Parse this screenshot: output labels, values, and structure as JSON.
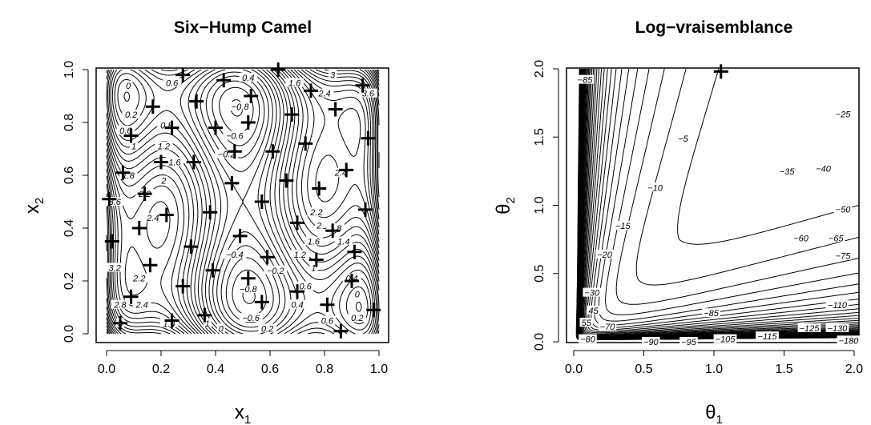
{
  "chart_data": [
    {
      "type": "contour",
      "title": "Six−Hump Camel",
      "xlabel": "x",
      "xlabel_sub": "1",
      "ylabel": "x",
      "ylabel_sub": "2",
      "xlim": [
        0,
        1
      ],
      "ylim": [
        0,
        1
      ],
      "x_ticks": [
        "0.0",
        "0.2",
        "0.4",
        "0.6",
        "0.8",
        "1.0"
      ],
      "y_ticks": [
        "0.0",
        "0.2",
        "0.4",
        "0.6",
        "0.8",
        "1.0"
      ],
      "contour_labels": [
        {
          "x": 0.08,
          "y": 0.94,
          "text": "0"
        },
        {
          "x": 0.24,
          "y": 0.95,
          "text": "0.6"
        },
        {
          "x": 0.52,
          "y": 0.97,
          "text": "0.4"
        },
        {
          "x": 0.69,
          "y": 0.95,
          "text": "1.6"
        },
        {
          "x": 0.83,
          "y": 0.98,
          "text": "3"
        },
        {
          "x": 0.8,
          "y": 0.91,
          "text": "2.4"
        },
        {
          "x": 0.96,
          "y": 0.91,
          "text": "3.6"
        },
        {
          "x": 0.49,
          "y": 0.86,
          "text": "−0.8"
        },
        {
          "x": 0.09,
          "y": 0.83,
          "text": "0.2"
        },
        {
          "x": 0.07,
          "y": 0.77,
          "text": "0.6"
        },
        {
          "x": 0.22,
          "y": 0.79,
          "text": "0.8"
        },
        {
          "x": 0.47,
          "y": 0.75,
          "text": "−0.6"
        },
        {
          "x": 0.1,
          "y": 0.71,
          "text": "1"
        },
        {
          "x": 0.21,
          "y": 0.71,
          "text": "1.2"
        },
        {
          "x": 0.44,
          "y": 0.68,
          "text": "−0.2"
        },
        {
          "x": 0.25,
          "y": 0.65,
          "text": "1.6"
        },
        {
          "x": 0.08,
          "y": 0.6,
          "text": "1.8"
        },
        {
          "x": 0.21,
          "y": 0.58,
          "text": "2"
        },
        {
          "x": 0.86,
          "y": 0.61,
          "text": "2.4"
        },
        {
          "x": 0.14,
          "y": 0.53,
          "text": "2.2"
        },
        {
          "x": 0.03,
          "y": 0.5,
          "text": "3.6"
        },
        {
          "x": 0.17,
          "y": 0.44,
          "text": "2.4"
        },
        {
          "x": 0.77,
          "y": 0.46,
          "text": "2.2"
        },
        {
          "x": 0.78,
          "y": 0.41,
          "text": "2"
        },
        {
          "x": 0.84,
          "y": 0.4,
          "text": "1.8"
        },
        {
          "x": 0.76,
          "y": 0.35,
          "text": "1.6"
        },
        {
          "x": 0.87,
          "y": 0.35,
          "text": "1.4"
        },
        {
          "x": 0.71,
          "y": 0.3,
          "text": "1.2"
        },
        {
          "x": 0.76,
          "y": 0.25,
          "text": "1"
        },
        {
          "x": 0.47,
          "y": 0.3,
          "text": "−0.4"
        },
        {
          "x": 0.03,
          "y": 0.25,
          "text": "3.2"
        },
        {
          "x": 0.62,
          "y": 0.24,
          "text": "−0.2"
        },
        {
          "x": 0.9,
          "y": 0.21,
          "text": "0.4"
        },
        {
          "x": 0.12,
          "y": 0.21,
          "text": "2.2"
        },
        {
          "x": 0.52,
          "y": 0.17,
          "text": "−0.8"
        },
        {
          "x": 0.73,
          "y": 0.18,
          "text": "0.6"
        },
        {
          "x": 0.92,
          "y": 0.15,
          "text": "0"
        },
        {
          "x": 0.7,
          "y": 0.11,
          "text": "0.4"
        },
        {
          "x": 0.13,
          "y": 0.11,
          "text": "2.4"
        },
        {
          "x": 0.05,
          "y": 0.11,
          "text": "2.8"
        },
        {
          "x": 0.53,
          "y": 0.06,
          "text": "−0.6"
        },
        {
          "x": 0.81,
          "y": 0.05,
          "text": "0.6"
        },
        {
          "x": 0.92,
          "y": 0.06,
          "text": "0.2"
        },
        {
          "x": 0.37,
          "y": 0.04,
          "text": "1"
        },
        {
          "x": 0.23,
          "y": 0.04,
          "text": "1.4"
        },
        {
          "x": 0.05,
          "y": 0.04,
          "text": "3"
        },
        {
          "x": 0.42,
          "y": 0.02,
          "text": "0"
        },
        {
          "x": 0.59,
          "y": 0.02,
          "text": "0.2"
        }
      ],
      "points": [
        [
          0.28,
          0.98
        ],
        [
          0.63,
          1.0
        ],
        [
          0.43,
          0.96
        ],
        [
          0.94,
          0.94
        ],
        [
          0.75,
          0.92
        ],
        [
          0.53,
          0.9
        ],
        [
          0.33,
          0.88
        ],
        [
          0.17,
          0.86
        ],
        [
          0.84,
          0.85
        ],
        [
          0.68,
          0.83
        ],
        [
          0.52,
          0.8
        ],
        [
          0.4,
          0.78
        ],
        [
          0.24,
          0.78
        ],
        [
          0.09,
          0.75
        ],
        [
          0.96,
          0.74
        ],
        [
          0.73,
          0.72
        ],
        [
          0.61,
          0.69
        ],
        [
          0.47,
          0.69
        ],
        [
          0.2,
          0.65
        ],
        [
          0.32,
          0.65
        ],
        [
          0.88,
          0.62
        ],
        [
          0.06,
          0.61
        ],
        [
          0.66,
          0.58
        ],
        [
          0.46,
          0.57
        ],
        [
          0.78,
          0.55
        ],
        [
          0.14,
          0.53
        ],
        [
          0.01,
          0.51
        ],
        [
          0.57,
          0.5
        ],
        [
          0.95,
          0.47
        ],
        [
          0.38,
          0.46
        ],
        [
          0.22,
          0.45
        ],
        [
          0.12,
          0.4
        ],
        [
          0.7,
          0.42
        ],
        [
          0.83,
          0.39
        ],
        [
          0.49,
          0.37
        ],
        [
          0.02,
          0.35
        ],
        [
          0.31,
          0.33
        ],
        [
          0.91,
          0.31
        ],
        [
          0.77,
          0.28
        ],
        [
          0.59,
          0.29
        ],
        [
          0.16,
          0.26
        ],
        [
          0.39,
          0.24
        ],
        [
          0.52,
          0.21
        ],
        [
          0.9,
          0.2
        ],
        [
          0.28,
          0.18
        ],
        [
          0.7,
          0.16
        ],
        [
          0.09,
          0.14
        ],
        [
          0.57,
          0.12
        ],
        [
          0.81,
          0.11
        ],
        [
          0.36,
          0.07
        ],
        [
          0.98,
          0.09
        ],
        [
          0.05,
          0.04
        ],
        [
          0.24,
          0.05
        ],
        [
          0.86,
          0.01
        ]
      ]
    },
    {
      "type": "contour",
      "title": "Log−vraisemblance",
      "xlabel": "θ",
      "xlabel_sub": "1",
      "ylabel": "θ",
      "ylabel_sub": "2",
      "xlim": [
        0,
        2
      ],
      "ylim": [
        0,
        2
      ],
      "x_ticks": [
        "0.0",
        "0.5",
        "1.0",
        "1.5",
        "2.0"
      ],
      "y_ticks": [
        "0.0",
        "0.5",
        "1.0",
        "1.5",
        "2.0"
      ],
      "contour_labels": [
        {
          "x": 0.08,
          "y": 1.92,
          "text": "−85"
        },
        {
          "x": 0.78,
          "y": 1.49,
          "text": "−5"
        },
        {
          "x": 0.58,
          "y": 1.13,
          "text": "−10"
        },
        {
          "x": 0.35,
          "y": 0.85,
          "text": "−15"
        },
        {
          "x": 0.22,
          "y": 0.64,
          "text": "−20"
        },
        {
          "x": 0.13,
          "y": 0.36,
          "text": "−30"
        },
        {
          "x": 0.14,
          "y": 0.23,
          "text": "45"
        },
        {
          "x": 0.09,
          "y": 0.14,
          "text": "55"
        },
        {
          "x": 0.24,
          "y": 0.11,
          "text": "−70"
        },
        {
          "x": 0.1,
          "y": 0.02,
          "text": "−80"
        },
        {
          "x": 0.55,
          "y": 0.0,
          "text": "−90"
        },
        {
          "x": 0.82,
          "y": 0.0,
          "text": "−95"
        },
        {
          "x": 1.08,
          "y": 0.02,
          "text": "−105"
        },
        {
          "x": 1.38,
          "y": 0.04,
          "text": "−115"
        },
        {
          "x": 1.68,
          "y": 0.1,
          "text": "−125"
        },
        {
          "x": 1.88,
          "y": 0.1,
          "text": "−130"
        },
        {
          "x": 1.96,
          "y": 0.01,
          "text": "−180"
        },
        {
          "x": 0.98,
          "y": 0.21,
          "text": "−85"
        },
        {
          "x": 1.88,
          "y": 0.27,
          "text": "−110"
        },
        {
          "x": 1.92,
          "y": 0.63,
          "text": "−75"
        },
        {
          "x": 1.87,
          "y": 0.76,
          "text": "−65"
        },
        {
          "x": 1.62,
          "y": 0.76,
          "text": "−60"
        },
        {
          "x": 1.92,
          "y": 0.97,
          "text": "−50"
        },
        {
          "x": 1.78,
          "y": 1.27,
          "text": "−40"
        },
        {
          "x": 1.52,
          "y": 1.25,
          "text": "−35"
        },
        {
          "x": 1.92,
          "y": 1.67,
          "text": "−25"
        }
      ],
      "points": [
        [
          1.05,
          1.98
        ]
      ]
    }
  ]
}
